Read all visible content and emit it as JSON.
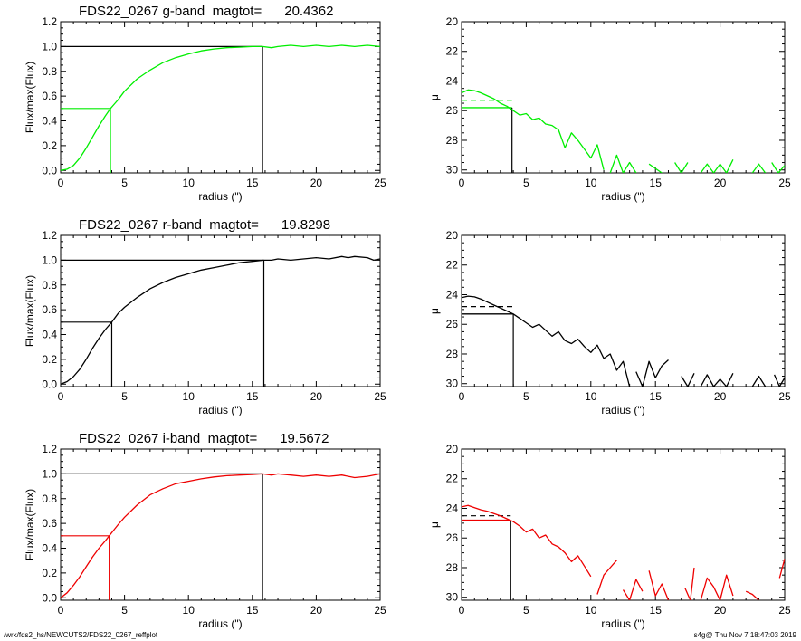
{
  "footer": {
    "path": "/wrk/fds2_hs/NEWCUTS2/FDS22_0267_reffplot",
    "stamp": "s4g@  Thu Nov  7 18:47:03 2019"
  },
  "chart_data": [
    {
      "type": "line",
      "band": "g",
      "color": "#00ee00",
      "title": "FDS22_0267 g-band  magtot=      20.4362",
      "xlabel": "radius (\")",
      "ylabel": "Flux/max(Flux)",
      "xlim": [
        0,
        25
      ],
      "ylim": [
        -0.02,
        1.2
      ],
      "xticks": [
        0,
        5,
        10,
        15,
        20,
        25
      ],
      "yticks": [
        0.0,
        0.2,
        0.4,
        0.6,
        0.8,
        1.0,
        1.2
      ],
      "series": [
        {
          "x": [
            0,
            0.5,
            1,
            1.5,
            2,
            2.5,
            3,
            3.5,
            3.9,
            4.5,
            5,
            6,
            7,
            8,
            9,
            10,
            11,
            12,
            13,
            14,
            15,
            15.8,
            16.5,
            17,
            18,
            19,
            20,
            21,
            22,
            23,
            24,
            25
          ],
          "y": [
            0.0,
            0.01,
            0.04,
            0.1,
            0.18,
            0.27,
            0.36,
            0.44,
            0.5,
            0.57,
            0.64,
            0.74,
            0.81,
            0.87,
            0.91,
            0.94,
            0.965,
            0.98,
            0.99,
            0.995,
            1.0,
            1.0,
            0.99,
            1.0,
            1.01,
            1.0,
            1.01,
            1.0,
            1.01,
            1.0,
            1.01,
            1.0
          ]
        }
      ],
      "reference_lines": {
        "half_light_radius": 3.9,
        "total_radius": 15.8,
        "half_flux": 0.5,
        "total_flux": 1.0
      }
    },
    {
      "type": "line",
      "band": "g",
      "color": "#00ee00",
      "xlabel": "radius (\")",
      "ylabel": "μ",
      "xlim": [
        0,
        25
      ],
      "ylim": [
        30.2,
        20
      ],
      "inverted_y": true,
      "xticks": [
        0,
        5,
        10,
        15,
        20,
        25
      ],
      "yticks": [
        20,
        22,
        24,
        26,
        28,
        30
      ],
      "reference_lines": {
        "half_light_radius": 3.9,
        "mu_solid": 25.8,
        "mu_dashed": 25.3
      },
      "series": [
        {
          "x": [
            0,
            0.5,
            1,
            1.5,
            2,
            2.5,
            3,
            3.5,
            4,
            4.5,
            5,
            5.5,
            6,
            6.5,
            7,
            7.5,
            8,
            8.5,
            9,
            9.5,
            10,
            10.5,
            11
          ],
          "y": [
            24.8,
            24.6,
            24.65,
            24.8,
            25.0,
            25.2,
            25.5,
            25.7,
            26.0,
            26.3,
            26.2,
            26.6,
            26.5,
            26.9,
            27.0,
            27.3,
            28.5,
            27.5,
            28.0,
            28.6,
            29.2,
            28.3,
            30.0
          ]
        },
        {
          "x": [
            11.5,
            12,
            12.5,
            13,
            13.5
          ],
          "y": [
            30.2,
            29.0,
            30.2,
            29.5,
            30.2
          ]
        },
        {
          "x": [
            14.5,
            15,
            15.5
          ],
          "y": [
            29.6,
            29.9,
            30.2
          ]
        },
        {
          "x": [
            16.5,
            17,
            17.5
          ],
          "y": [
            29.5,
            30.2,
            29.5
          ]
        },
        {
          "x": [
            18.5,
            19,
            19.5,
            20,
            20.5,
            21
          ],
          "y": [
            30.2,
            29.6,
            30.2,
            29.6,
            30.2,
            29.3
          ]
        },
        {
          "x": [
            22.5,
            23,
            23.5
          ],
          "y": [
            30.2,
            29.6,
            30.2
          ]
        },
        {
          "x": [
            24,
            24.5,
            25
          ],
          "y": [
            29.5,
            30.2,
            29.7
          ]
        }
      ]
    },
    {
      "type": "line",
      "band": "r",
      "color": "#000000",
      "title": "FDS22_0267 r-band  magtot=      19.8298",
      "xlabel": "radius (\")",
      "ylabel": "Flux/max(Flux)",
      "xlim": [
        0,
        25
      ],
      "ylim": [
        -0.02,
        1.2
      ],
      "xticks": [
        0,
        5,
        10,
        15,
        20,
        25
      ],
      "yticks": [
        0.0,
        0.2,
        0.4,
        0.6,
        0.8,
        1.0,
        1.2
      ],
      "series": [
        {
          "x": [
            0,
            0.5,
            1,
            1.5,
            2,
            2.5,
            3,
            3.5,
            4,
            4.5,
            5,
            6,
            7,
            8,
            9,
            10,
            11,
            12,
            13,
            14,
            15,
            15.9,
            16.5,
            17,
            18,
            19,
            20,
            21,
            22,
            22.5,
            23,
            24,
            24.5,
            25
          ],
          "y": [
            0.0,
            0.02,
            0.06,
            0.12,
            0.2,
            0.29,
            0.37,
            0.44,
            0.5,
            0.57,
            0.62,
            0.7,
            0.77,
            0.82,
            0.86,
            0.89,
            0.92,
            0.94,
            0.96,
            0.98,
            0.99,
            1.0,
            1.0,
            1.01,
            1.0,
            1.01,
            1.02,
            1.01,
            1.03,
            1.02,
            1.03,
            1.02,
            1.0,
            1.01
          ]
        }
      ],
      "reference_lines": {
        "half_light_radius": 4.0,
        "total_radius": 15.9,
        "half_flux": 0.5,
        "total_flux": 1.0
      }
    },
    {
      "type": "line",
      "band": "r",
      "color": "#000000",
      "xlabel": "radius (\")",
      "ylabel": "μ",
      "xlim": [
        0,
        25
      ],
      "ylim": [
        30.2,
        20
      ],
      "inverted_y": true,
      "xticks": [
        0,
        5,
        10,
        15,
        20,
        25
      ],
      "yticks": [
        20,
        22,
        24,
        26,
        28,
        30
      ],
      "reference_lines": {
        "half_light_radius": 4.0,
        "mu_solid": 25.3,
        "mu_dashed": 24.8
      },
      "series": [
        {
          "x": [
            0,
            0.5,
            1,
            1.5,
            2,
            2.5,
            3,
            3.5,
            4,
            4.5,
            5,
            5.5,
            6,
            6.5,
            7,
            7.5,
            8,
            8.5,
            9,
            9.5,
            10,
            10.5,
            11,
            11.5,
            12,
            12.5,
            13
          ],
          "y": [
            24.2,
            24.1,
            24.15,
            24.3,
            24.5,
            24.7,
            24.9,
            25.1,
            25.3,
            25.6,
            25.9,
            26.2,
            26.0,
            26.4,
            26.8,
            26.5,
            27.1,
            27.3,
            27.0,
            27.5,
            27.9,
            27.4,
            28.3,
            28.0,
            29.1,
            28.5,
            30.2
          ]
        },
        {
          "x": [
            13.5,
            14,
            14.5,
            15,
            15.5,
            16
          ],
          "y": [
            29.2,
            30.2,
            28.5,
            29.6,
            28.8,
            28.4
          ]
        },
        {
          "x": [
            17,
            17.5,
            18
          ],
          "y": [
            29.5,
            30.2,
            29.3
          ]
        },
        {
          "x": [
            18.5,
            19,
            19.5,
            20,
            20.5,
            21
          ],
          "y": [
            30.2,
            29.4,
            30.2,
            29.7,
            30.2,
            29.3
          ]
        },
        {
          "x": [
            22.5,
            23,
            23.5
          ],
          "y": [
            30.2,
            29.5,
            30.2
          ]
        },
        {
          "x": [
            24.2,
            24.6,
            25
          ],
          "y": [
            29.4,
            30.2,
            29.6
          ]
        }
      ]
    },
    {
      "type": "line",
      "band": "i",
      "color": "#ee0000",
      "title": "FDS22_0267 i-band  magtot=      19.5672",
      "xlabel": "radius (\")",
      "ylabel": "Flux/max(Flux)",
      "xlim": [
        0,
        25
      ],
      "ylim": [
        -0.02,
        1.2
      ],
      "xticks": [
        0,
        5,
        10,
        15,
        20,
        25
      ],
      "yticks": [
        0.0,
        0.2,
        0.4,
        0.6,
        0.8,
        1.0,
        1.2
      ],
      "series": [
        {
          "x": [
            0,
            0.5,
            1,
            1.5,
            2,
            2.5,
            3,
            3.5,
            3.8,
            4.5,
            5,
            6,
            7,
            8,
            9,
            10,
            11,
            12,
            13,
            14,
            15,
            15.8,
            16.5,
            17,
            18,
            19,
            20,
            21,
            22,
            23,
            24,
            25
          ],
          "y": [
            0.0,
            0.04,
            0.1,
            0.17,
            0.25,
            0.33,
            0.4,
            0.46,
            0.5,
            0.59,
            0.65,
            0.75,
            0.83,
            0.88,
            0.92,
            0.94,
            0.96,
            0.975,
            0.985,
            0.99,
            0.995,
            1.0,
            0.99,
            1.0,
            0.99,
            0.98,
            0.99,
            0.98,
            0.99,
            0.97,
            0.98,
            1.0
          ]
        }
      ],
      "reference_lines": {
        "half_light_radius": 3.8,
        "total_radius": 15.8,
        "half_flux": 0.5,
        "total_flux": 1.0
      }
    },
    {
      "type": "line",
      "band": "i",
      "color": "#ee0000",
      "xlabel": "radius (\")",
      "ylabel": "μ",
      "xlim": [
        0,
        25
      ],
      "ylim": [
        30.2,
        20
      ],
      "inverted_y": true,
      "xticks": [
        0,
        5,
        10,
        15,
        20,
        25
      ],
      "yticks": [
        20,
        22,
        24,
        26,
        28,
        30
      ],
      "reference_lines": {
        "half_light_radius": 3.8,
        "mu_solid": 24.8,
        "mu_dashed": 24.5
      },
      "series": [
        {
          "x": [
            0,
            0.5,
            1,
            1.5,
            2,
            2.5,
            3,
            3.5,
            4,
            4.5,
            5,
            5.5,
            6,
            6.5,
            7,
            7.5,
            8,
            8.5,
            9,
            9.5,
            10
          ],
          "y": [
            23.9,
            23.8,
            23.95,
            24.1,
            24.2,
            24.35,
            24.5,
            24.7,
            24.9,
            25.2,
            25.6,
            25.4,
            26.0,
            25.8,
            26.4,
            26.6,
            27.0,
            27.6,
            27.2,
            27.9,
            28.6
          ]
        },
        {
          "x": [
            10.5,
            11,
            11.5,
            12
          ],
          "y": [
            29.8,
            28.5,
            28.0,
            27.5
          ]
        },
        {
          "x": [
            12.5,
            13,
            13.5,
            14
          ],
          "y": [
            29.5,
            30.2,
            28.8,
            29.6
          ]
        },
        {
          "x": [
            14.5,
            15,
            15.5,
            16
          ],
          "y": [
            28.2,
            29.9,
            29.1,
            30.2
          ]
        },
        {
          "x": [
            17.3,
            17.7,
            18
          ],
          "y": [
            29.4,
            30.2,
            28.0
          ]
        },
        {
          "x": [
            18.5,
            19,
            19.5,
            20,
            20.5,
            21
          ],
          "y": [
            30.2,
            28.7,
            29.3,
            30.2,
            28.5,
            29.9
          ]
        },
        {
          "x": [
            22,
            22.5,
            23
          ],
          "y": [
            29.6,
            29.8,
            30.2
          ]
        },
        {
          "x": [
            24.6,
            25
          ],
          "y": [
            28.7,
            27.4
          ]
        }
      ]
    }
  ]
}
